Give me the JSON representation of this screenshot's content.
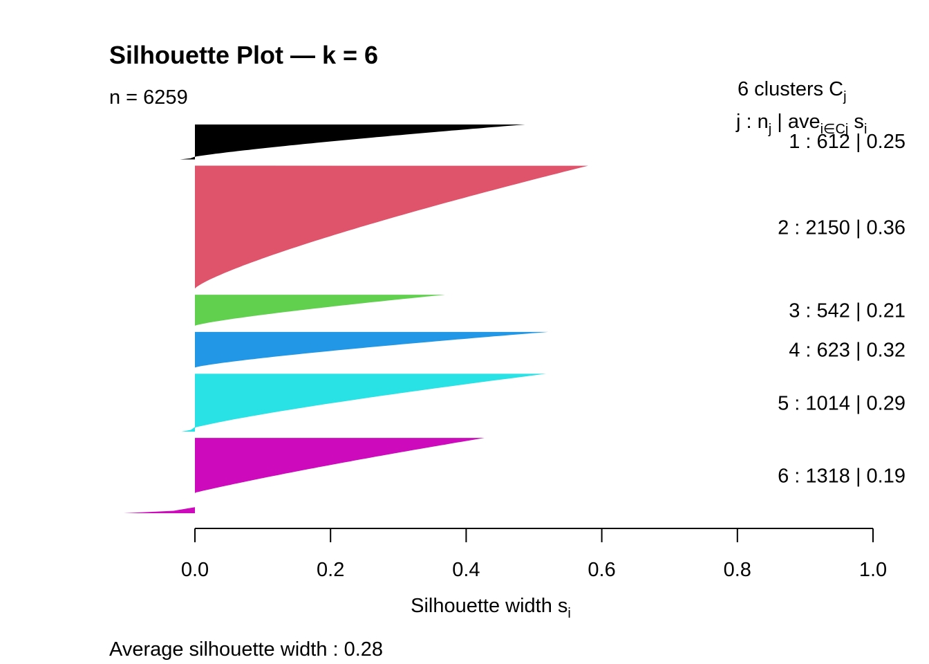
{
  "chart_data": {
    "type": "area",
    "title": "Silhouette Plot — k = 6",
    "n_label": "n = 6259",
    "xlabel": "Silhouette width",
    "xlabel_sub": "i",
    "xlabel_var": "s",
    "xlim": [
      0,
      1
    ],
    "x_ticks": [
      0.0,
      0.2,
      0.4,
      0.6,
      0.8,
      1.0
    ],
    "x_tick_labels": [
      "0.0",
      "0.2",
      "0.4",
      "0.6",
      "0.8",
      "1.0"
    ],
    "footer": "Average silhouette width :  0.28",
    "legend_header_1": "6  clusters  C",
    "legend_header_1_sub": "j",
    "legend_header_2": "j :  n",
    "legend_header_2_sub": "j",
    "legend_header_2_mid": " | ave",
    "legend_header_2_sub2": "i∈Cj",
    "legend_header_2_end": "  s",
    "legend_header_2_sub3": "i",
    "clusters": [
      {
        "label": "1 :   612  |  0.25",
        "n": 612,
        "ave": 0.25,
        "color": "#000000",
        "max": 0.487,
        "min": -0.022
      },
      {
        "label": "2 :   2150  |  0.36",
        "n": 2150,
        "ave": 0.36,
        "color": "#DF536B",
        "max": 0.58,
        "min": 0.0
      },
      {
        "label": "3 :   542  |  0.21",
        "n": 542,
        "ave": 0.21,
        "color": "#61D04F",
        "max": 0.369,
        "min": 0.0
      },
      {
        "label": "4 :   623  |  0.32",
        "n": 623,
        "ave": 0.32,
        "color": "#2297E6",
        "max": 0.521,
        "min": 0.0
      },
      {
        "label": "5 :   1014  |  0.29",
        "n": 1014,
        "ave": 0.29,
        "color": "#28E2E5",
        "max": 0.518,
        "min": -0.02
      },
      {
        "label": "6 :   1318  |  0.19",
        "n": 1318,
        "ave": 0.19,
        "color": "#CD0BBC",
        "max": 0.427,
        "min": -0.105
      }
    ]
  }
}
